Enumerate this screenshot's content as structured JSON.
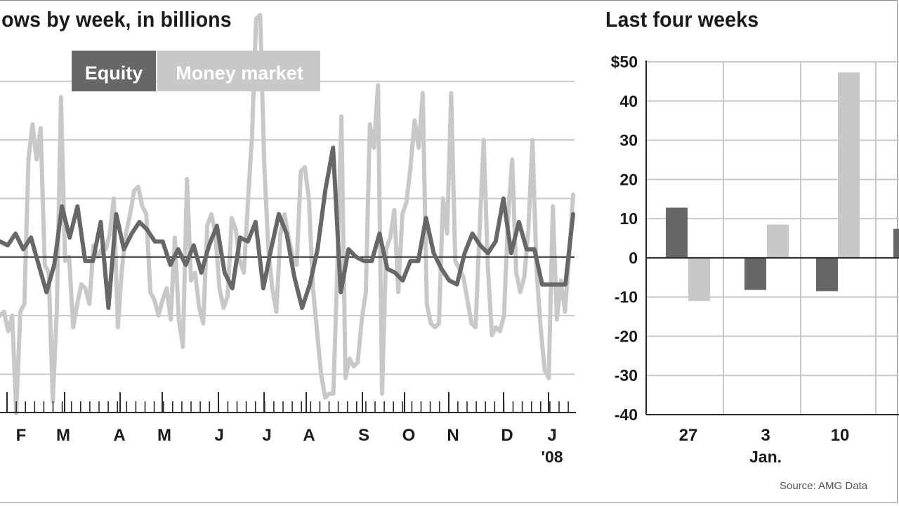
{
  "left_title": "lows by week, in billions",
  "right_title": "Last four weeks",
  "source": "Source: AMG Data",
  "colors": {
    "equity": "#666769",
    "money_market": "#c7c8ca",
    "grid": "#c8c8c8",
    "zero": "#2a2a2a"
  },
  "chart_data": [
    {
      "type": "line",
      "title": "lows by week, in billions",
      "legend": [
        "Equity",
        "Money market"
      ],
      "x_tick_labels": [
        "F",
        "M",
        "A",
        "M",
        "J",
        "J",
        "A",
        "S",
        "O",
        "N",
        "D",
        "J"
      ],
      "x_sublabel": "'08",
      "ylim": [
        -40,
        50
      ],
      "series": [
        {
          "name": "Equity",
          "values": [
            4,
            3,
            6,
            2,
            5,
            -2,
            -9,
            -2,
            13,
            5,
            13,
            -1,
            -1,
            9,
            -13,
            11,
            2,
            6,
            9,
            7,
            4,
            4,
            -2,
            2,
            -2,
            3,
            -4,
            3,
            8,
            -4,
            -8,
            5,
            4,
            9,
            -8,
            2,
            11,
            6,
            -5,
            -13,
            -7,
            2,
            17,
            28,
            -9,
            2,
            0,
            -1,
            -1,
            6,
            -3,
            -4,
            -6,
            -1,
            -1,
            10,
            1,
            -3,
            -6,
            -7,
            1,
            6,
            3,
            1,
            4,
            15,
            1,
            9,
            2,
            2,
            -7,
            -7,
            -7,
            -7,
            11
          ]
        },
        {
          "name": "Money market",
          "values": [
            -15,
            -14,
            -19,
            -15,
            -40,
            -14,
            -12,
            25,
            34,
            25,
            33,
            -2,
            -4,
            -37,
            -13,
            41,
            -1,
            0,
            -18,
            -12,
            -7,
            -8,
            -12,
            3,
            0,
            2,
            2,
            6,
            15,
            -18,
            -3,
            6,
            11,
            17,
            18,
            13,
            11,
            -9,
            -11,
            -15,
            -11,
            -8,
            -16,
            5,
            -16,
            -23,
            20,
            -6,
            -4,
            -13,
            -17,
            8,
            11,
            6,
            -8,
            -13,
            -10,
            10,
            7,
            -1,
            -4,
            14,
            31,
            61,
            62,
            24,
            2,
            -8,
            -14,
            6,
            11,
            5,
            0,
            -2,
            22,
            23,
            15,
            -8,
            -19,
            -30,
            -36,
            -35,
            -35,
            -3,
            36,
            -31,
            -26,
            -28,
            -27,
            -16,
            -9,
            34,
            28,
            44,
            -35,
            2,
            5,
            12,
            -9,
            11,
            14,
            23,
            35,
            28,
            42,
            -12,
            -17,
            -18,
            -17,
            15,
            6,
            42,
            -1,
            -3,
            -5,
            -11,
            -17,
            -18,
            7,
            30,
            -2,
            -20,
            -18,
            -19,
            -15,
            10,
            25,
            -4,
            -9,
            -5,
            7,
            30,
            -3,
            -18,
            -29,
            -31,
            13,
            -16,
            -6,
            -14,
            0,
            16
          ]
        }
      ]
    },
    {
      "type": "bar",
      "title": "Last four weeks",
      "categories": [
        "27",
        "3",
        "10",
        ""
      ],
      "category_sublabels": [
        "",
        "Jan.",
        "",
        ""
      ],
      "y_tick_labels": [
        "$50",
        "40",
        "30",
        "20",
        "10",
        "0",
        "-10",
        "-20",
        "-30",
        "-40"
      ],
      "ylim": [
        -40,
        50
      ],
      "series": [
        {
          "name": "Equity",
          "values": [
            12.8,
            -8.2,
            -8.5,
            7.4
          ]
        },
        {
          "name": "Money market",
          "values": [
            -11.0,
            8.5,
            47.3,
            0
          ]
        }
      ]
    }
  ]
}
